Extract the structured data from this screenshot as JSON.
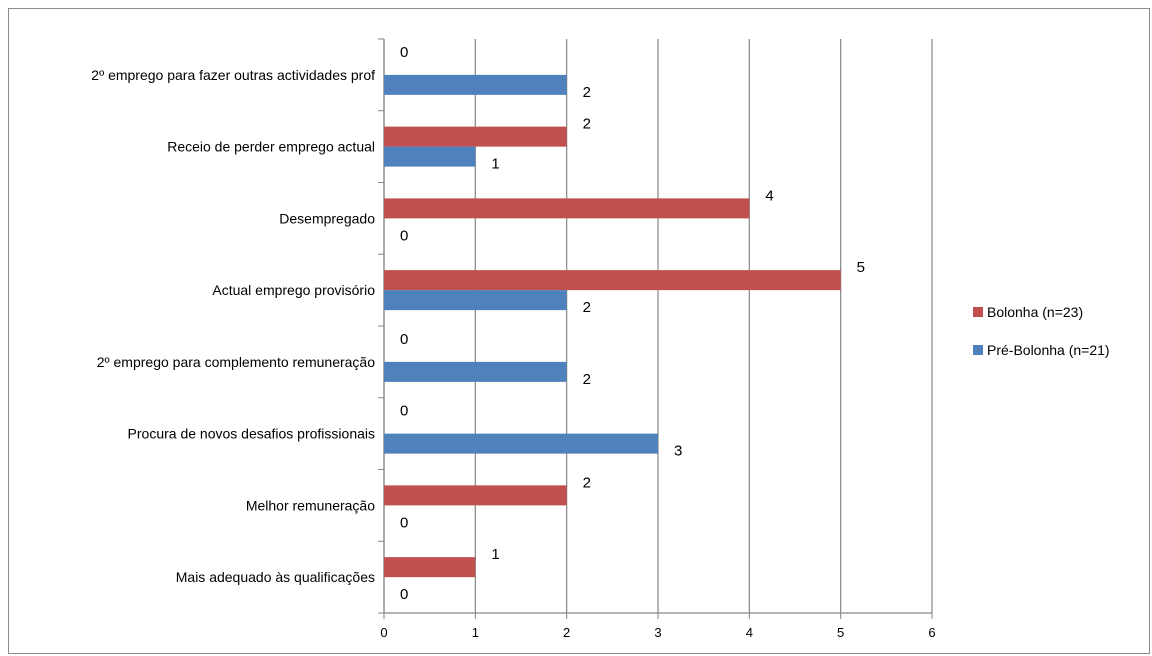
{
  "chart_data": {
    "type": "bar",
    "orientation": "horizontal",
    "categories": [
      "2º emprego para fazer outras actividades prof",
      "Receio de perder emprego actual",
      "Desempregado",
      "Actual emprego provisório",
      "2º emprego para complemento remuneração",
      "Procura de novos desafios profissionais",
      "Melhor remuneração",
      "Mais adequado às qualificações"
    ],
    "series": [
      {
        "name": "Bolonha (n=23)",
        "color": "#c0504d",
        "values": [
          0,
          2,
          4,
          5,
          0,
          0,
          2,
          1
        ]
      },
      {
        "name": "Pré-Bolonha (n=21)",
        "color": "#4f81bd",
        "values": [
          2,
          1,
          0,
          2,
          2,
          3,
          0,
          0
        ]
      }
    ],
    "xlim": [
      0,
      6
    ],
    "xticks": [
      "0",
      "1",
      "2",
      "3",
      "4",
      "5",
      "6"
    ],
    "grid": "vertical",
    "legend": "right",
    "gridline_color": "#868686"
  }
}
